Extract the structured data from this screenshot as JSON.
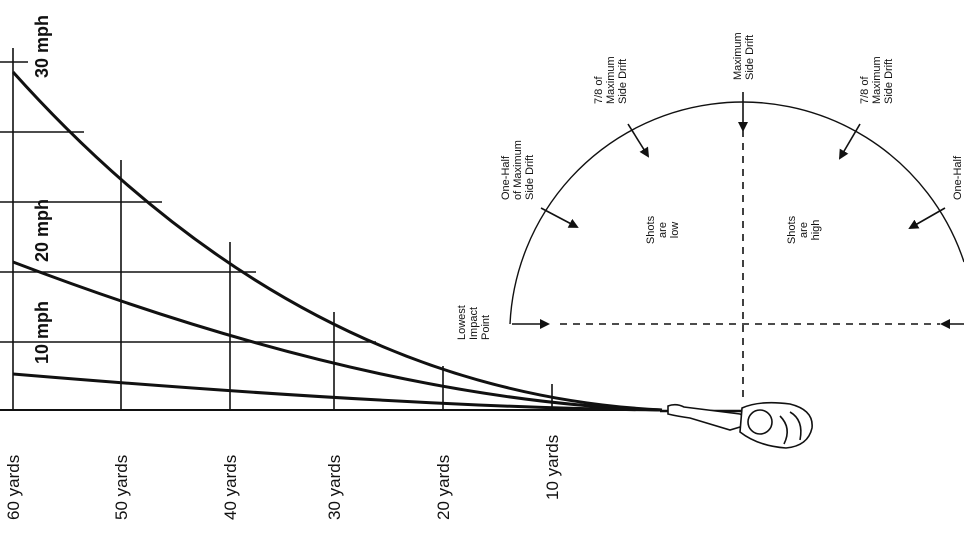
{
  "left_diagram": {
    "distance_labels": [
      "60 yards",
      "50 yards",
      "40 yards",
      "30 yards",
      "20 yards",
      "10 yards"
    ],
    "wind_labels": [
      "30 mph",
      "20 mph",
      "10 mph"
    ]
  },
  "right_diagram": {
    "one_half_left": [
      "One-Half",
      "of Maximum",
      "Side Drift"
    ],
    "seven_eighths_left": [
      "7/8 of",
      "Maximum",
      "Side Drift"
    ],
    "maximum": [
      "Maximum",
      "Side Drift"
    ],
    "seven_eighths_right": [
      "7/8 of",
      "Maximum",
      "Side Drift"
    ],
    "one_half_right": [
      "One-Half"
    ],
    "lowest_impact": [
      "Lowest",
      "Impact",
      "Point"
    ],
    "shots_low": [
      "Shots",
      "are",
      "low"
    ],
    "shots_high": [
      "Shots",
      "are",
      "high"
    ]
  }
}
